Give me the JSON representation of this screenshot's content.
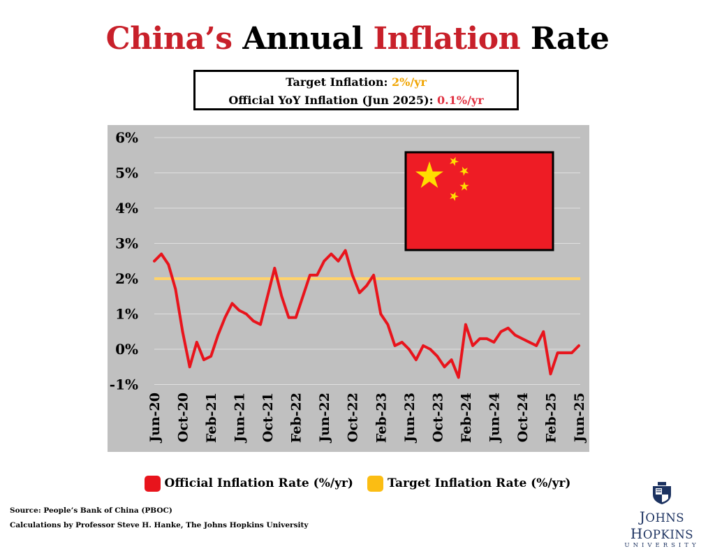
{
  "title": {
    "part1": "China’s",
    "part2": " Annual ",
    "part3": "Inflation",
    "part4": " Rate"
  },
  "infobox": {
    "line1_label": "Target Inflation: ",
    "line1_value": "2%/yr",
    "line2_label": "Official YoY Inflation (Jun 2025): ",
    "line2_value": "0.1%/yr"
  },
  "chart_data": {
    "type": "line",
    "title": "China’s Annual Inflation Rate",
    "xlabel": "",
    "ylabel": "",
    "ylim": [
      -1,
      6
    ],
    "yticks": [
      -1,
      0,
      1,
      2,
      3,
      4,
      5,
      6
    ],
    "ytick_labels": [
      "-1%",
      "0%",
      "1%",
      "2%",
      "3%",
      "4%",
      "5%",
      "6%"
    ],
    "xtick_labels": [
      "Jun-20",
      "Oct-20",
      "Feb-21",
      "Jun-21",
      "Oct-21",
      "Feb-22",
      "Jun-22",
      "Oct-22",
      "Feb-23",
      "Jun-23",
      "Oct-23",
      "Feb-24",
      "Jun-24",
      "Oct-24",
      "Feb-25",
      "Jun-25"
    ],
    "grid": true,
    "background_color": "#c0c0c0",
    "x": [
      "Jun-20",
      "Jul-20",
      "Aug-20",
      "Sep-20",
      "Oct-20",
      "Nov-20",
      "Dec-20",
      "Jan-21",
      "Feb-21",
      "Mar-21",
      "Apr-21",
      "May-21",
      "Jun-21",
      "Jul-21",
      "Aug-21",
      "Sep-21",
      "Oct-21",
      "Nov-21",
      "Dec-21",
      "Jan-22",
      "Feb-22",
      "Mar-22",
      "Apr-22",
      "May-22",
      "Jun-22",
      "Jul-22",
      "Aug-22",
      "Sep-22",
      "Oct-22",
      "Nov-22",
      "Dec-22",
      "Jan-23",
      "Feb-23",
      "Mar-23",
      "Apr-23",
      "May-23",
      "Jun-23",
      "Jul-23",
      "Aug-23",
      "Sep-23",
      "Oct-23",
      "Nov-23",
      "Dec-23",
      "Jan-24",
      "Feb-24",
      "Mar-24",
      "Apr-24",
      "May-24",
      "Jun-24",
      "Jul-24",
      "Aug-24",
      "Sep-24",
      "Oct-24",
      "Nov-24",
      "Dec-24",
      "Jan-25",
      "Feb-25",
      "Mar-25",
      "Apr-25",
      "May-25",
      "Jun-25"
    ],
    "series": [
      {
        "name": "Official Inflation Rate (%/yr)",
        "color": "#e8141c",
        "values": [
          2.5,
          2.7,
          2.4,
          1.7,
          0.5,
          -0.5,
          0.2,
          -0.3,
          -0.2,
          0.4,
          0.9,
          1.3,
          1.1,
          1.0,
          0.8,
          0.7,
          1.5,
          2.3,
          1.5,
          0.9,
          0.9,
          1.5,
          2.1,
          2.1,
          2.5,
          2.7,
          2.5,
          2.8,
          2.1,
          1.6,
          1.8,
          2.1,
          1.0,
          0.7,
          0.1,
          0.2,
          0.0,
          -0.3,
          0.1,
          0.0,
          -0.2,
          -0.5,
          -0.3,
          -0.8,
          0.7,
          0.1,
          0.3,
          0.3,
          0.2,
          0.5,
          0.6,
          0.4,
          0.3,
          0.2,
          0.1,
          0.5,
          -0.7,
          -0.1,
          -0.1,
          -0.1,
          0.1
        ]
      },
      {
        "name": "Target Inflation Rate (%/yr)",
        "color": "#ffd36b",
        "values": [
          2,
          2,
          2,
          2,
          2,
          2,
          2,
          2,
          2,
          2,
          2,
          2,
          2,
          2,
          2,
          2,
          2,
          2,
          2,
          2,
          2,
          2,
          2,
          2,
          2,
          2,
          2,
          2,
          2,
          2,
          2,
          2,
          2,
          2,
          2,
          2,
          2,
          2,
          2,
          2,
          2,
          2,
          2,
          2,
          2,
          2,
          2,
          2,
          2,
          2,
          2,
          2,
          2,
          2,
          2,
          2,
          2,
          2,
          2,
          2,
          2
        ]
      }
    ]
  },
  "legend": [
    {
      "label": "Official Inflation Rate (%/yr)",
      "color": "#e8141c"
    },
    {
      "label": "Target Inflation Rate (%/yr)",
      "color": "#fbbd13"
    }
  ],
  "flag": {
    "icon": "china-flag-icon",
    "field_color": "#ee1c25",
    "star_color": "#ffde00"
  },
  "source": {
    "line1": "Source: People’s Bank of China (PBOC)",
    "line2": "Calculations by Professor Steve H. Hanke, The Johns Hopkins University"
  },
  "logo": {
    "icon": "jhu-shield-icon",
    "name_j": "J",
    "name_ohns": "OHNS ",
    "name_h": "H",
    "name_opkins": "OPKINS",
    "sub": "UNIVERSITY"
  }
}
